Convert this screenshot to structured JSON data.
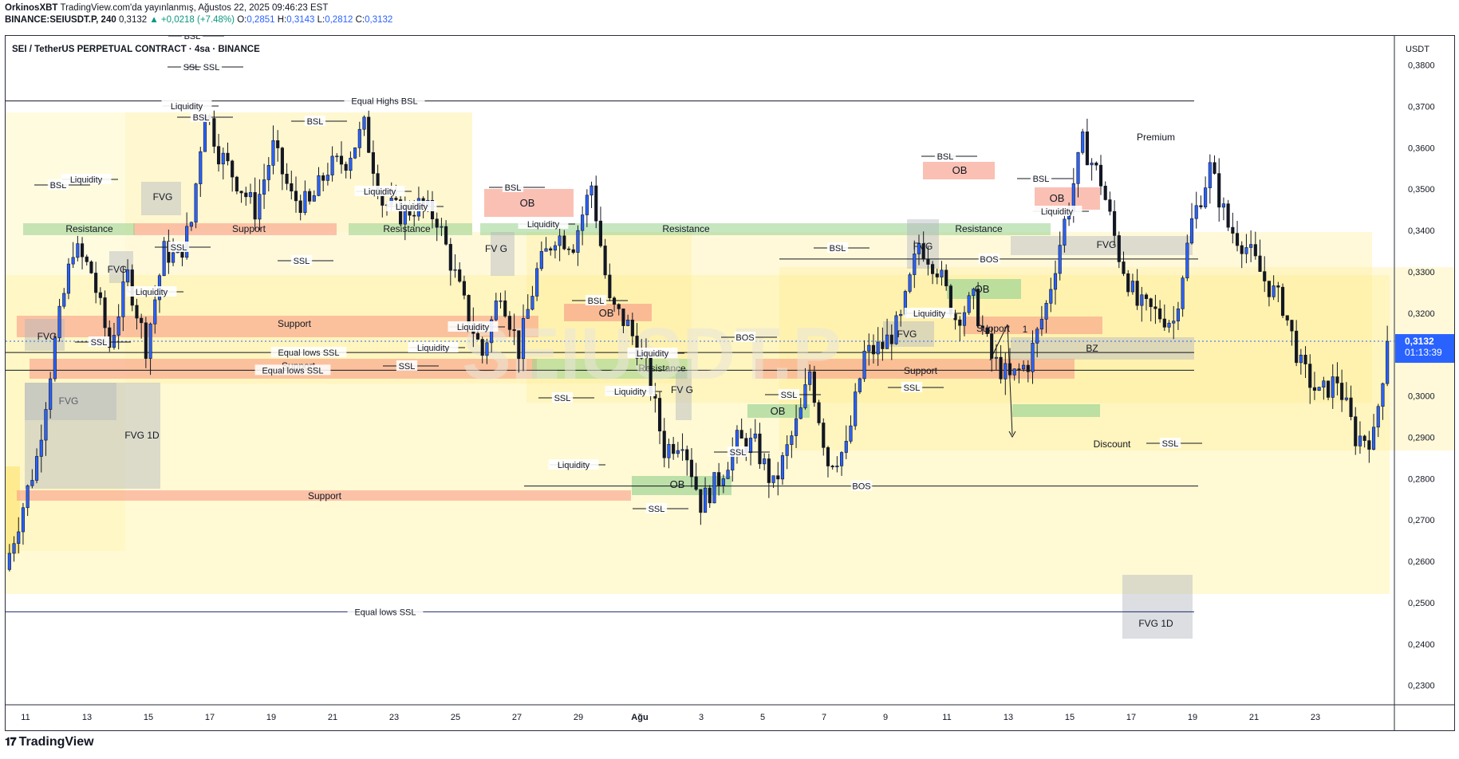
{
  "header": {
    "author": "OrkinosXBT",
    "published": "TradingView.com'da yayınlanmış, Ağustos 22, 2025 09:46:23 EST",
    "symbol_line": "BINANCE:SEIUSDT.P, 240",
    "last": "0,3132",
    "change": "▲ +0,0218 (+7.48%)",
    "o_label": "O:",
    "o": "0,2851",
    "h_label": "H:",
    "h": "0,3143",
    "l_label": "L:",
    "l": "0,2812",
    "c_label": "C:",
    "c": "0,3132"
  },
  "chart_title": "SEI / TetherUS PERPETUAL CONTRACT · 4sa · BINANCE",
  "watermark": "SEIUSDT.P",
  "price_axis": {
    "currency": "USDT",
    "current_price": "0,3132",
    "countdown": "01:13:39",
    "current_color": "#2962ff"
  },
  "brand": "TradingView",
  "colors": {
    "up": "#2962ff",
    "down": "#131722",
    "support": "#f7a391",
    "resistance": "#a5d99a",
    "fvg": "#b2b5be",
    "premium_zone": "#fff3b0",
    "ob": "#f7a391"
  },
  "chart_data": {
    "type": "candlestick",
    "x_ticks": [
      "11",
      "13",
      "15",
      "17",
      "19",
      "21",
      "23",
      "25",
      "27",
      "29",
      "Ağu",
      "3",
      "5",
      "7",
      "9",
      "11",
      "13",
      "15",
      "17",
      "19",
      "21",
      "23"
    ],
    "y_ticks": [
      "0,3800",
      "0,3700",
      "0,3600",
      "0,3500",
      "0,3400",
      "0,3300",
      "0,3200",
      "0,3100",
      "0,3000",
      "0,2900",
      "0,2800",
      "0,2700",
      "0,2600",
      "0,2500",
      "0,2400",
      "0,2300"
    ],
    "y_range": [
      0.2255,
      0.3855
    ],
    "close_path": [
      [
        0,
        0.262
      ],
      [
        6,
        0.285
      ],
      [
        10,
        0.313
      ],
      [
        14,
        0.336
      ],
      [
        18,
        0.33
      ],
      [
        22,
        0.312
      ],
      [
        26,
        0.329
      ],
      [
        30,
        0.312
      ],
      [
        34,
        0.335
      ],
      [
        37,
        0.333
      ],
      [
        40,
        0.342
      ],
      [
        43,
        0.37
      ],
      [
        46,
        0.359
      ],
      [
        50,
        0.352
      ],
      [
        54,
        0.345
      ],
      [
        58,
        0.36
      ],
      [
        62,
        0.348
      ],
      [
        66,
        0.346
      ],
      [
        70,
        0.355
      ],
      [
        74,
        0.357
      ],
      [
        78,
        0.365
      ],
      [
        82,
        0.347
      ],
      [
        86,
        0.344
      ],
      [
        90,
        0.346
      ],
      [
        94,
        0.343
      ],
      [
        100,
        0.322
      ],
      [
        104,
        0.31
      ],
      [
        108,
        0.326
      ],
      [
        112,
        0.311
      ],
      [
        116,
        0.33
      ],
      [
        120,
        0.339
      ],
      [
        124,
        0.337
      ],
      [
        128,
        0.351
      ],
      [
        132,
        0.322
      ],
      [
        136,
        0.317
      ],
      [
        140,
        0.307
      ],
      [
        144,
        0.287
      ],
      [
        148,
        0.29
      ],
      [
        152,
        0.274
      ],
      [
        156,
        0.28
      ],
      [
        160,
        0.289
      ],
      [
        164,
        0.288
      ],
      [
        168,
        0.278
      ],
      [
        172,
        0.29
      ],
      [
        174,
        0.296
      ],
      [
        176,
        0.306
      ],
      [
        180,
        0.284
      ],
      [
        184,
        0.287
      ],
      [
        188,
        0.31
      ],
      [
        192,
        0.312
      ],
      [
        196,
        0.318
      ],
      [
        200,
        0.337
      ],
      [
        204,
        0.331
      ],
      [
        208,
        0.319
      ],
      [
        212,
        0.323
      ],
      [
        216,
        0.309
      ],
      [
        220,
        0.304
      ],
      [
        224,
        0.308
      ],
      [
        228,
        0.322
      ],
      [
        232,
        0.342
      ],
      [
        236,
        0.361
      ],
      [
        240,
        0.352
      ],
      [
        244,
        0.334
      ],
      [
        248,
        0.322
      ],
      [
        252,
        0.32
      ],
      [
        256,
        0.318
      ],
      [
        260,
        0.342
      ],
      [
        264,
        0.355
      ],
      [
        268,
        0.341
      ],
      [
        272,
        0.336
      ],
      [
        276,
        0.328
      ],
      [
        280,
        0.322
      ],
      [
        284,
        0.307
      ],
      [
        288,
        0.3
      ],
      [
        292,
        0.304
      ],
      [
        296,
        0.29
      ],
      [
        300,
        0.29
      ],
      [
        303,
        0.313
      ]
    ],
    "levels": [
      {
        "label": "Equal Highs BSL",
        "price": 0.3713
      },
      {
        "label": "Equal lows SSL",
        "price": 0.3105
      },
      {
        "label": "Equal lows SSL",
        "price": 0.3062
      },
      {
        "label": "BOS",
        "price": 0.2782
      },
      {
        "label": "BOS",
        "price": 0.3331
      },
      {
        "label": "Equal lows SSL",
        "price": 0.2478
      }
    ],
    "zones": [
      {
        "label": "Support",
        "kind": "support"
      },
      {
        "label": "Support",
        "kind": "support"
      },
      {
        "label": "Support",
        "kind": "support"
      },
      {
        "label": "Support",
        "kind": "support"
      },
      {
        "label": "Support",
        "kind": "support"
      },
      {
        "label": "Support",
        "kind": "support"
      },
      {
        "label": "Resistance",
        "kind": "resistance"
      },
      {
        "label": "Resistance",
        "kind": "resistance"
      },
      {
        "label": "Resistance",
        "kind": "resistance"
      },
      {
        "label": "Resistance",
        "kind": "resistance"
      },
      {
        "label": "Resistance",
        "kind": "resistance"
      },
      {
        "label": "FVG",
        "kind": "fvg"
      },
      {
        "label": "FVG",
        "kind": "fvg"
      },
      {
        "label": "FVG",
        "kind": "fvg"
      },
      {
        "label": "FVG 1D",
        "kind": "fvg"
      },
      {
        "label": "FVG 1D",
        "kind": "fvg"
      },
      {
        "label": "FVG",
        "kind": "fvg"
      },
      {
        "label": "FVG",
        "kind": "fvg"
      },
      {
        "label": "FVG",
        "kind": "fvg"
      },
      {
        "label": "FV G",
        "kind": "fvg"
      },
      {
        "label": "FV G",
        "kind": "fvg"
      },
      {
        "label": "FVG",
        "kind": "fvg"
      },
      {
        "label": "OB",
        "kind": "ob"
      },
      {
        "label": "OB",
        "kind": "ob"
      },
      {
        "label": "OB",
        "kind": "ob"
      },
      {
        "label": "OB",
        "kind": "ob"
      },
      {
        "label": "OB",
        "kind": "ob-green"
      },
      {
        "label": "OB",
        "kind": "ob-green"
      },
      {
        "label": "OB",
        "kind": "ob-green"
      },
      {
        "label": "BZ",
        "kind": "fvg"
      }
    ],
    "annotations": [
      "BSL",
      "BSL",
      "BSL",
      "BSL",
      "BSL",
      "BSL",
      "BSL",
      "BSL",
      "BSL",
      "Liquidity",
      "Liquidity",
      "Liquidity",
      "Liquidity",
      "Liquidity",
      "Liquidity",
      "Liquidity",
      "Liquidity",
      "Liquidity",
      "Liquidity",
      "Liquidity",
      "Liquidity",
      "Liquidity",
      "SSL",
      "SSL",
      "SSL",
      "SSL",
      "SSL",
      "SSL",
      "SSL",
      "SSL",
      "SSL",
      "SSL",
      "SSL",
      "SSL",
      "BOS",
      "Premium",
      "Discount",
      "1"
    ]
  }
}
